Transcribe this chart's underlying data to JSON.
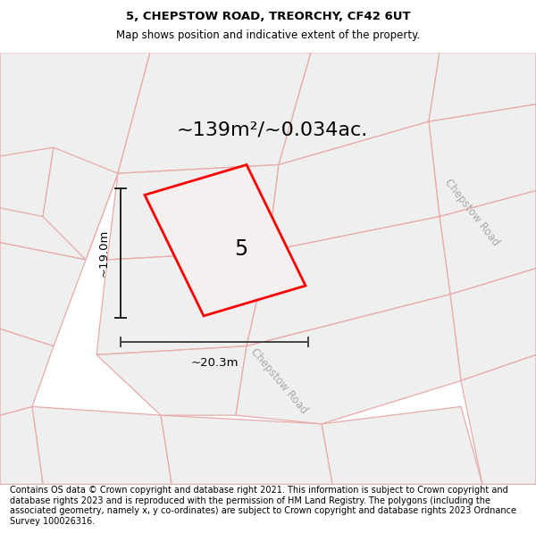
{
  "title": "5, CHEPSTOW ROAD, TREORCHY, CF42 6UT",
  "subtitle": "Map shows position and indicative extent of the property.",
  "area_label": "~139m²/~0.034ac.",
  "width_label": "~20.3m",
  "height_label": "~19.0m",
  "number_label": "5",
  "footer_text": "Contains OS data © Crown copyright and database right 2021. This information is subject to Crown copyright and database rights 2023 and is reproduced with the permission of HM Land Registry. The polygons (including the associated geometry, namely x, y co-ordinates) are subject to Crown copyright and database rights 2023 Ordnance Survey 100026316.",
  "title_fontsize": 9.5,
  "subtitle_fontsize": 8.5,
  "footer_fontsize": 7.0,
  "area_fontsize": 16,
  "number_fontsize": 17,
  "dim_fontsize": 9.5
}
